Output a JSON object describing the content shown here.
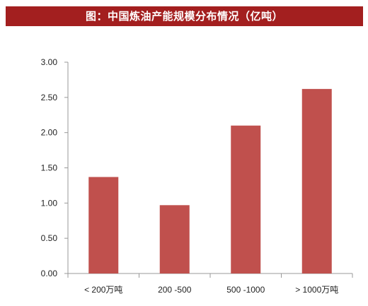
{
  "title": "图：中国炼油产能规模分布情况（亿吨）",
  "colors": {
    "title_bg": "#a31f1f",
    "bar": "#c0504d",
    "axis": "#999999"
  },
  "chart_data": {
    "type": "bar",
    "categories": [
      "< 200万吨",
      "200 -500",
      "500 -1000",
      "> 1000万吨"
    ],
    "values": [
      1.37,
      0.97,
      2.1,
      2.62
    ],
    "ylim": [
      0,
      3
    ],
    "yticks": [
      "0.00",
      "0.50",
      "1.00",
      "1.50",
      "2.00",
      "2.50",
      "3.00"
    ],
    "grid": false,
    "legend": "none"
  }
}
